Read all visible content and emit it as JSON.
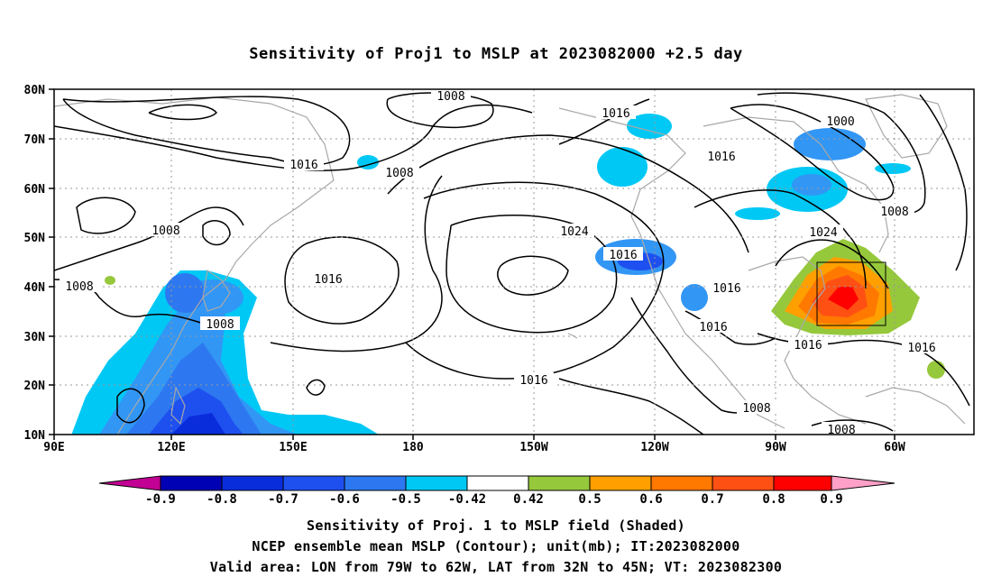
{
  "title": "Sensitivity of Proj1 to MSLP at 2023082000 +2.5 day",
  "captions": [
    "Sensitivity of Proj. 1 to MSLP field (Shaded)",
    "NCEP ensemble mean MSLP (Contour); unit(mb); IT:2023082000",
    "Valid area: LON from 79W to 62W, LAT from 32N to 45N; VT: 2023082300"
  ],
  "lat_labels": [
    "80N",
    "70N",
    "60N",
    "50N",
    "40N",
    "30N",
    "20N",
    "10N"
  ],
  "lon_labels": [
    "90E",
    "120E",
    "150E",
    "180",
    "150W",
    "120W",
    "90W",
    "60W"
  ],
  "contour_labels": [
    "1008",
    "1016",
    "1008",
    "1008",
    "1016",
    "1008",
    "1008",
    "1016",
    "1024",
    "1016",
    "1016",
    "1016",
    "1016",
    "1000",
    "1008",
    "1024",
    "1016",
    "1016",
    "1016",
    "1008",
    "1008"
  ],
  "colorbar": {
    "labels": [
      "-0.9",
      "-0.8",
      "-0.7",
      "-0.6",
      "-0.5",
      "-0.42",
      "0.42",
      "0.5",
      "0.6",
      "0.7",
      "0.8",
      "0.9"
    ],
    "colors": [
      "#c20093",
      "#0000b4",
      "#0a2ddc",
      "#1e50f0",
      "#2d78f0",
      "#3296f5",
      "#00c8f5",
      "#ffffff",
      "#96c83c",
      "#ffa000",
      "#ff7800",
      "#ff5014",
      "#ff0000",
      "#ffa0c8"
    ]
  },
  "valid_area": {
    "lon_min": -79,
    "lon_max": -62,
    "lat_min": 32,
    "lat_max": 45
  }
}
